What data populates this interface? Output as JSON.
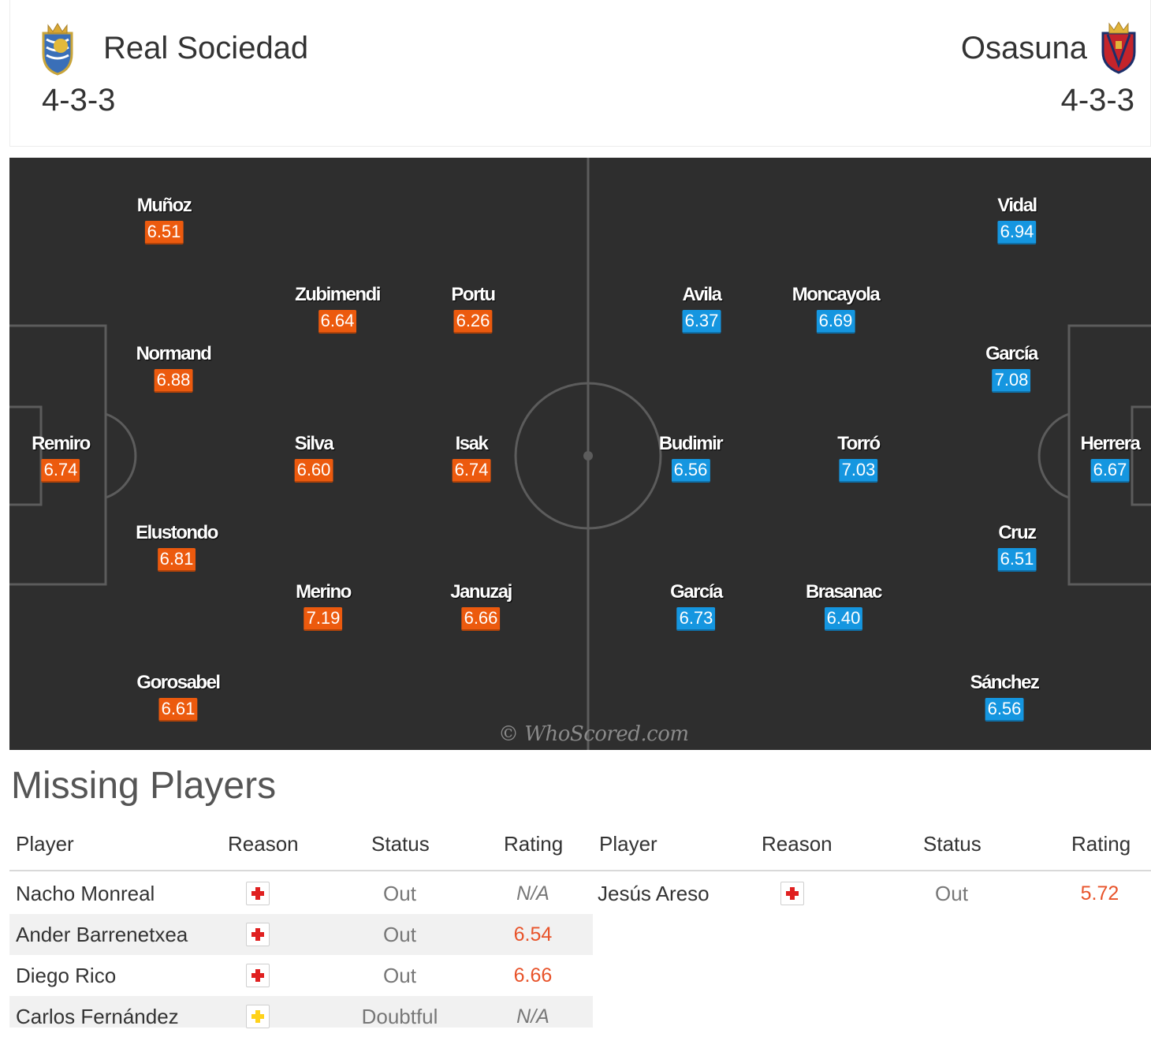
{
  "home_team": {
    "name": "Real Sociedad",
    "formation": "4-3-3",
    "crest_icon": "real-sociedad-crest-icon"
  },
  "away_team": {
    "name": "Osasuna",
    "formation": "4-3-3",
    "crest_icon": "osasuna-crest-icon"
  },
  "colors": {
    "home_rating": "#ec5a0e",
    "away_rating": "#1596e0",
    "pitch": "#2e2e2e",
    "injury": "#e02020",
    "doubtful": "#ffd21a"
  },
  "pitch": {
    "watermark": "© WhoScored.com",
    "home_players": [
      {
        "name": "Remiro",
        "rating": "6.74"
      },
      {
        "name": "Muñoz",
        "rating": "6.51"
      },
      {
        "name": "Normand",
        "rating": "6.88"
      },
      {
        "name": "Elustondo",
        "rating": "6.81"
      },
      {
        "name": "Gorosabel",
        "rating": "6.61"
      },
      {
        "name": "Zubimendi",
        "rating": "6.64"
      },
      {
        "name": "Silva",
        "rating": "6.60"
      },
      {
        "name": "Merino",
        "rating": "7.19"
      },
      {
        "name": "Portu",
        "rating": "6.26"
      },
      {
        "name": "Isak",
        "rating": "6.74"
      },
      {
        "name": "Januzaj",
        "rating": "6.66"
      }
    ],
    "away_players": [
      {
        "name": "Avila",
        "rating": "6.37"
      },
      {
        "name": "Budimir",
        "rating": "6.56"
      },
      {
        "name": "García",
        "rating": "6.73"
      },
      {
        "name": "Moncayola",
        "rating": "6.69"
      },
      {
        "name": "Torró",
        "rating": "7.03"
      },
      {
        "name": "Brasanac",
        "rating": "6.40"
      },
      {
        "name": "Vidal",
        "rating": "6.94"
      },
      {
        "name": "García",
        "rating": "7.08"
      },
      {
        "name": "Cruz",
        "rating": "6.51"
      },
      {
        "name": "Sánchez",
        "rating": "6.56"
      },
      {
        "name": "Herrera",
        "rating": "6.67"
      }
    ]
  },
  "missing": {
    "title": "Missing Players",
    "columns": [
      "Player",
      "Reason",
      "Status",
      "Rating"
    ],
    "home": [
      {
        "player": "Nacho Monreal",
        "reason_icon": "injury-icon",
        "status": "Out",
        "rating": "N/A"
      },
      {
        "player": "Ander Barrenetxea",
        "reason_icon": "injury-icon",
        "status": "Out",
        "rating": "6.54"
      },
      {
        "player": "Diego Rico",
        "reason_icon": "injury-icon",
        "status": "Out",
        "rating": "6.66"
      },
      {
        "player": "Carlos Fernández",
        "reason_icon": "doubtful-icon",
        "status": "Doubtful",
        "rating": "N/A"
      }
    ],
    "away": [
      {
        "player": "Jesús Areso",
        "reason_icon": "injury-icon",
        "status": "Out",
        "rating": "5.72"
      }
    ]
  }
}
